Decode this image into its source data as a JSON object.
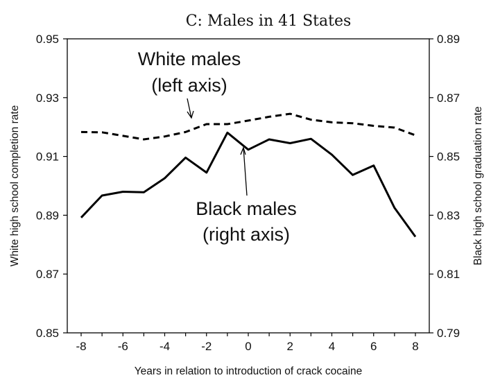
{
  "chart_data": {
    "type": "line",
    "title": "C: Males in 41 States",
    "xlabel": "Years in relation to introduction of crack cocaine",
    "ylabel_left": "White high school completion rate",
    "ylabel_right": "Black high school graduation rate",
    "x": [
      -8,
      -7,
      -6,
      -5,
      -4,
      -3,
      -2,
      -1,
      0,
      1,
      2,
      3,
      4,
      5,
      6,
      7,
      8
    ],
    "x_ticks": [
      "-8",
      "-6",
      "-4",
      "-2",
      "0",
      "2",
      "4",
      "6",
      "8"
    ],
    "ylim_left": [
      0.85,
      0.95
    ],
    "ylim_right": [
      0.79,
      0.89
    ],
    "y_ticks_left": [
      "0.95",
      "0.93",
      "0.91",
      "0.89",
      "0.87",
      "0.85"
    ],
    "y_ticks_right": [
      "0.89",
      "0.87",
      "0.85",
      "0.83",
      "0.81",
      "0.79"
    ],
    "grid": false,
    "series": [
      {
        "axis": "left",
        "style": "dashed",
        "color": "#000000",
        "values": [
          0.9183,
          0.9182,
          0.917,
          0.9158,
          0.9168,
          0.9183,
          0.921,
          0.921,
          0.9222,
          0.9235,
          0.9245,
          0.9225,
          0.9216,
          0.9213,
          0.9204,
          0.9198,
          0.9172
        ]
      },
      {
        "axis": "right",
        "style": "solid",
        "color": "#000000",
        "values": [
          0.8292,
          0.8367,
          0.838,
          0.8378,
          0.8426,
          0.8496,
          0.8445,
          0.8581,
          0.8523,
          0.8558,
          0.8545,
          0.856,
          0.8506,
          0.8437,
          0.8469,
          0.8325,
          0.8227
        ]
      }
    ],
    "annotations": [
      {
        "lines": [
          "White males",
          "(left axis)"
        ],
        "points_to": "series-0"
      },
      {
        "lines": [
          "Black males",
          "(right axis)"
        ],
        "points_to": "series-1"
      }
    ]
  }
}
